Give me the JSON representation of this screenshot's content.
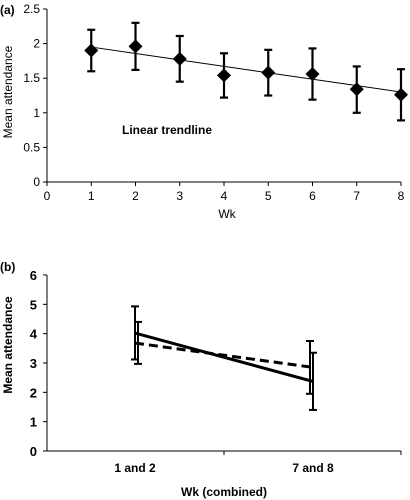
{
  "chart_data": [
    {
      "panel": "(a)",
      "type": "scatter",
      "xlabel": "Wk",
      "ylabel": "Mean attendance",
      "xlim": [
        0,
        8
      ],
      "ylim": [
        0,
        2.5
      ],
      "xticks": [
        "0",
        "1",
        "2",
        "3",
        "4",
        "5",
        "6",
        "7",
        "8"
      ],
      "yticks": [
        "0",
        "0.5",
        "1",
        "1.5",
        "2",
        "2.5"
      ],
      "annotation": "Linear trendline",
      "grid": false,
      "series": [
        {
          "marker": "diamond",
          "x": [
            1,
            2,
            3,
            4,
            5,
            6,
            7,
            8
          ],
          "y": [
            1.9,
            1.96,
            1.78,
            1.54,
            1.58,
            1.56,
            1.34,
            1.26
          ],
          "err_low": [
            1.6,
            1.62,
            1.45,
            1.22,
            1.25,
            1.19,
            1.0,
            0.89
          ],
          "err_high": [
            2.2,
            2.3,
            2.11,
            1.86,
            1.91,
            1.93,
            1.67,
            1.63
          ]
        }
      ],
      "trendline": {
        "x": [
          1,
          8
        ],
        "y": [
          1.95,
          1.3
        ]
      }
    },
    {
      "panel": "(b)",
      "type": "line",
      "xlabel": "Wk (combined)",
      "ylabel": "Mean attendance",
      "categories": [
        "1 and 2",
        "7 and 8"
      ],
      "ylim": [
        0,
        6
      ],
      "yticks": [
        "0",
        "1",
        "2",
        "3",
        "4",
        "5",
        "6"
      ],
      "grid": false,
      "series": [
        {
          "style": "solid",
          "values": [
            4.02,
            2.37
          ],
          "err_low": [
            3.12,
            1.4
          ],
          "err_high": [
            4.93,
            3.35
          ]
        },
        {
          "style": "dashed",
          "values": [
            3.68,
            2.85
          ],
          "err_low": [
            2.97,
            1.95
          ],
          "err_high": [
            4.4,
            3.75
          ]
        }
      ]
    }
  ]
}
